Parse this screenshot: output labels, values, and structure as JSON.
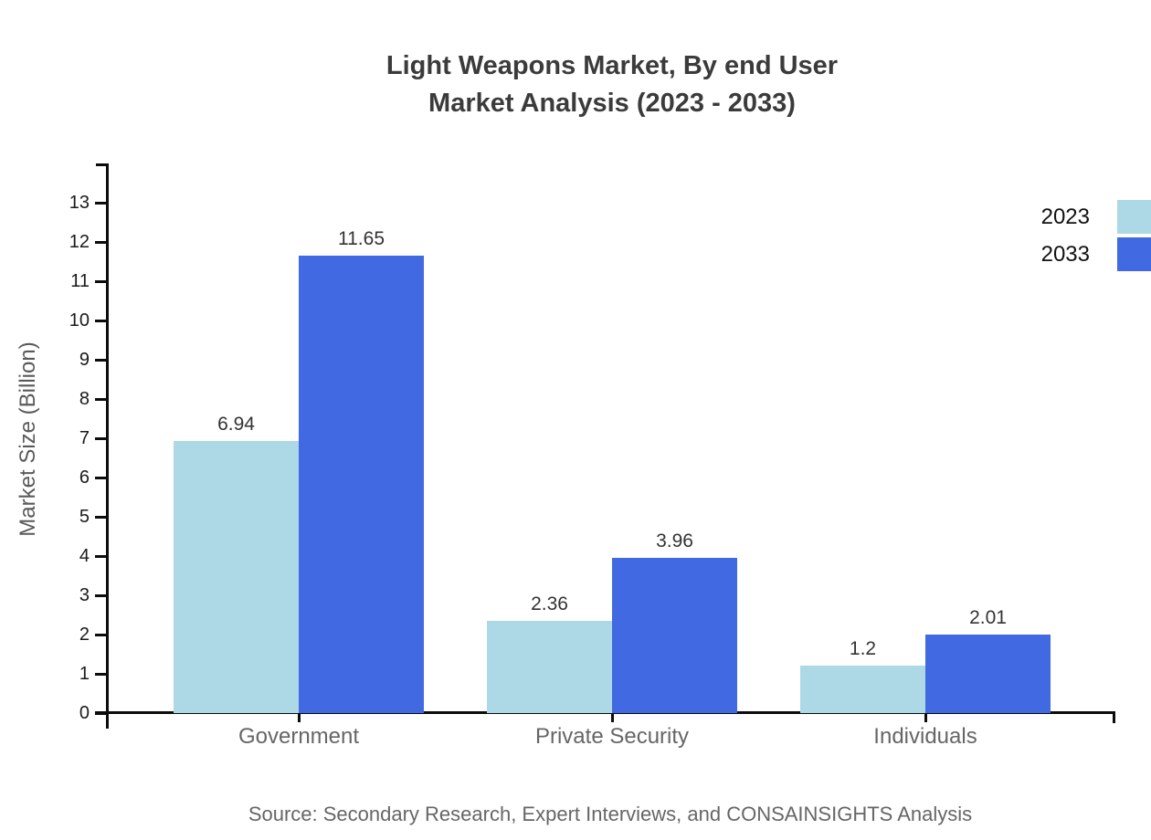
{
  "title": {
    "line1": "Light Weapons Market, By end User",
    "line2": "Market Analysis (2023 - 2033)"
  },
  "source": "Source: Secondary Research, Expert Interviews, and CONSAINSIGHTS Analysis",
  "chart_data": {
    "type": "bar",
    "categories": [
      "Government",
      "Private Security",
      "Individuals"
    ],
    "series": [
      {
        "name": "2023",
        "color": "#ADD8E6",
        "values": [
          6.94,
          2.36,
          1.2
        ]
      },
      {
        "name": "2033",
        "color": "#4169E1",
        "values": [
          11.65,
          3.96,
          2.01
        ]
      }
    ],
    "value_labels": [
      [
        "6.94",
        "2.36",
        "1.2"
      ],
      [
        "11.65",
        "3.96",
        "2.01"
      ]
    ],
    "title": "Light Weapons Market, By end User Market Analysis (2023 - 2033)",
    "xlabel": "",
    "ylabel": "Market Size (Billion)",
    "ylim": [
      0,
      14
    ],
    "yticks": [
      0,
      1,
      2,
      3,
      4,
      5,
      6,
      7,
      8,
      9,
      10,
      11,
      12,
      13
    ],
    "grid": false,
    "legend_position": "top-right"
  },
  "colors": {
    "axis": "#0c0c0c",
    "title_text": "#3b3b3b",
    "tick_text": "#1a1a1a",
    "category_text": "#666666",
    "value_text": "#333333",
    "source_text": "#666666"
  }
}
